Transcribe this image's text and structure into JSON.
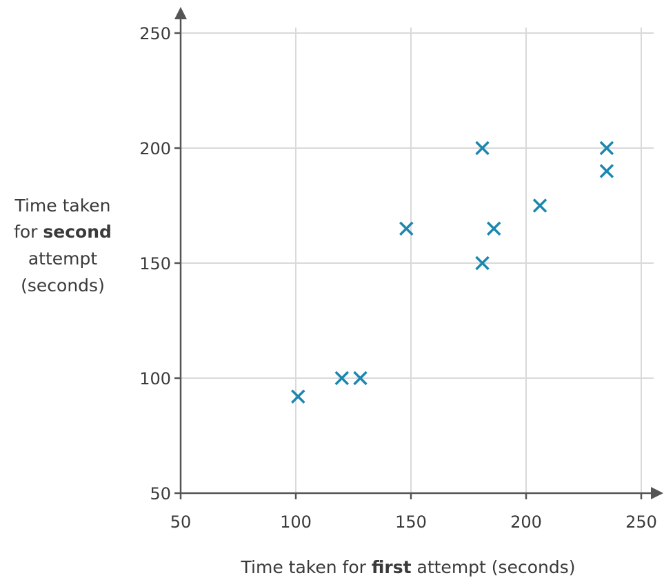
{
  "chart_data": {
    "type": "scatter",
    "title": "",
    "xlabel": {
      "before": "Time taken for ",
      "bold": "first",
      "after": " attempt (seconds)"
    },
    "ylabel": {
      "line1": "Time taken",
      "line2_before": "for ",
      "line2_bold": "second",
      "line3": "attempt",
      "line4": "(seconds)"
    },
    "xlim": [
      50,
      250
    ],
    "ylim": [
      50,
      250
    ],
    "xticks": [
      50,
      100,
      150,
      200,
      250
    ],
    "yticks": [
      50,
      100,
      150,
      200,
      250
    ],
    "grid": true,
    "marker": "x",
    "marker_color": "#1a87b0",
    "points": [
      {
        "x": 101,
        "y": 92
      },
      {
        "x": 120,
        "y": 100
      },
      {
        "x": 128,
        "y": 100
      },
      {
        "x": 148,
        "y": 165
      },
      {
        "x": 181,
        "y": 200
      },
      {
        "x": 181,
        "y": 150
      },
      {
        "x": 186,
        "y": 165
      },
      {
        "x": 206,
        "y": 175
      },
      {
        "x": 235,
        "y": 200
      },
      {
        "x": 235,
        "y": 190
      }
    ]
  }
}
